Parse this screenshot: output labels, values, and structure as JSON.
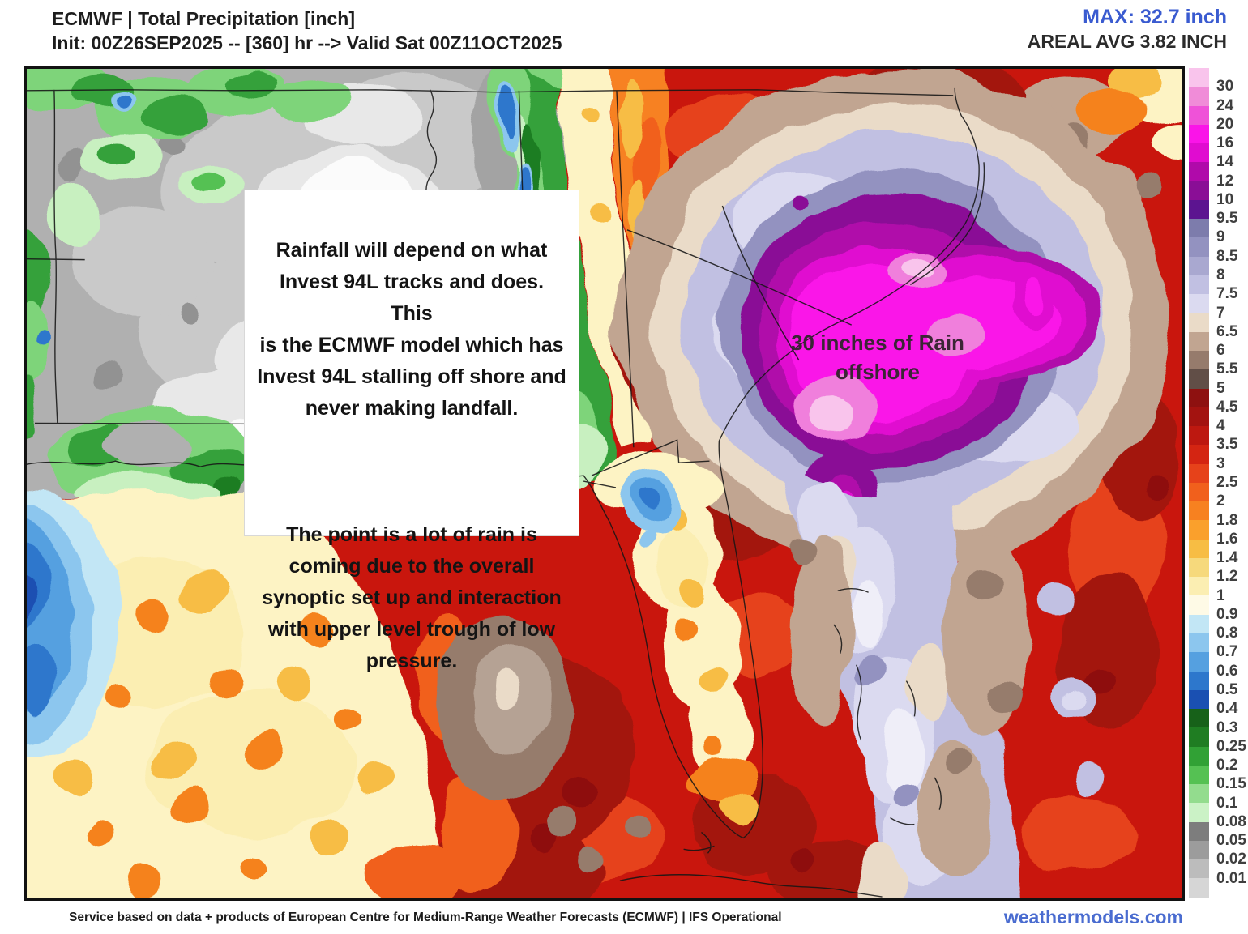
{
  "header": {
    "title": "ECMWF | Total Precipitation [inch]",
    "subtitle": "Init: 00Z26SEP2025 -- [360] hr --> Valid Sat 00Z11OCT2025",
    "max_value": "MAX: 32.7 inch",
    "areal_avg": "AREAL AVG 3.82 INCH"
  },
  "annotation_box": {
    "paragraph1_lines": [
      "Rainfall will depend on what",
      "Invest 94L tracks and does. This",
      "is the ECMWF model which has",
      "Invest 94L stalling off shore and",
      "never making landfall."
    ],
    "paragraph2_lines": [
      "The point is a lot of rain is",
      "coming due to the overall",
      "synoptic set up and interaction",
      "with upper level trough of low",
      "pressure."
    ]
  },
  "map_annotation": {
    "lines": [
      "30 inches of Rain",
      "offshore"
    ]
  },
  "colorbar": {
    "units": "inch",
    "labels": [
      "30",
      "24",
      "20",
      "16",
      "14",
      "12",
      "10",
      "9.5",
      "9",
      "8.5",
      "8",
      "7.5",
      "7",
      "6.5",
      "6",
      "5.5",
      "5",
      "4.5",
      "4",
      "3.5",
      "3",
      "2.5",
      "2",
      "1.8",
      "1.6",
      "1.4",
      "1.2",
      "1",
      "0.9",
      "0.8",
      "0.7",
      "0.6",
      "0.5",
      "0.4",
      "0.3",
      "0.25",
      "0.2",
      "0.15",
      "0.1",
      "0.08",
      "0.05",
      "0.02",
      "0.01"
    ],
    "segment_colors": [
      "#f9c4ec",
      "#f08cd8",
      "#ef52d8",
      "#fa14e8",
      "#e00cd0",
      "#b00aaa",
      "#8a0e96",
      "#5c1490",
      "#7d7cac",
      "#9392c0",
      "#a9a8d0",
      "#c1c0e2",
      "#dbdaf0",
      "#eadbc8",
      "#c1a591",
      "#967b6c",
      "#614e47",
      "#8e1110",
      "#a31310",
      "#bd1810",
      "#d42512",
      "#e6421a",
      "#f1601c",
      "#f78120",
      "#faa02c",
      "#f7bd44",
      "#f6d97c",
      "#fbeeb2",
      "#fefae6",
      "#c2e6f5",
      "#8cc6ee",
      "#55a0e0",
      "#2d77cc",
      "#1a50b2",
      "#176119",
      "#1f7d22",
      "#31a135",
      "#55c153",
      "#93dc8e",
      "#cbf2c6",
      "#7d7d7d",
      "#9c9c9c",
      "#bcbcbc",
      "#d6d6d6"
    ]
  },
  "footer": {
    "attribution": "Service based on data + products of European Centre for Medium-Range Weather Forecasts (ECMWF) | IFS Operational",
    "brand": "weathermodels.com"
  },
  "colors": {
    "max_text": "#3a5bd0",
    "brand_text": "#4a6cd0",
    "header_text": "#1d1d1d",
    "colorbar_label_text": "#3f3f3f"
  }
}
